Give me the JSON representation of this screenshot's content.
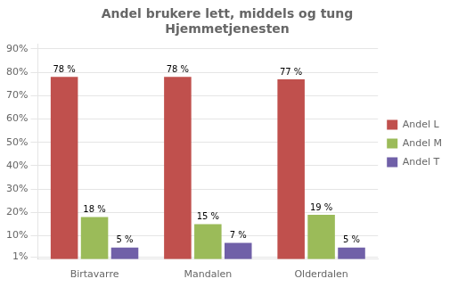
{
  "chart_data": {
    "type": "bar",
    "title": "Andel brukere lett, middels og tung\nHjemmetjenesten",
    "categories": [
      "Birtavarre",
      "Mandalen",
      "Olderdalen"
    ],
    "series": [
      {
        "name": "Andel L",
        "color": "#c0504d",
        "values": [
          78,
          78,
          77
        ],
        "value_labels": [
          "78 %",
          "78 %",
          "77 %"
        ]
      },
      {
        "name": "Andel M",
        "color": "#9bbb59",
        "values": [
          18,
          15,
          19
        ],
        "value_labels": [
          "18 %",
          "15 %",
          "19 %"
        ]
      },
      {
        "name": "Andel T",
        "color": "#7060a8",
        "values": [
          5,
          7,
          5
        ],
        "value_labels": [
          "5 %",
          "7 %",
          "5 %"
        ]
      }
    ],
    "ylim": [
      0,
      92
    ],
    "yticks": [
      {
        "value": 1,
        "label": "1%"
      },
      {
        "value": 10,
        "label": "10%"
      },
      {
        "value": 20,
        "label": "20%"
      },
      {
        "value": 30,
        "label": "30%"
      },
      {
        "value": 40,
        "label": "40%"
      },
      {
        "value": 50,
        "label": "50%"
      },
      {
        "value": 60,
        "label": "60%"
      },
      {
        "value": 70,
        "label": "70%"
      },
      {
        "value": 80,
        "label": "80%"
      },
      {
        "value": 90,
        "label": "90%"
      }
    ],
    "grid": true,
    "legend": "right",
    "data_labels": true
  }
}
